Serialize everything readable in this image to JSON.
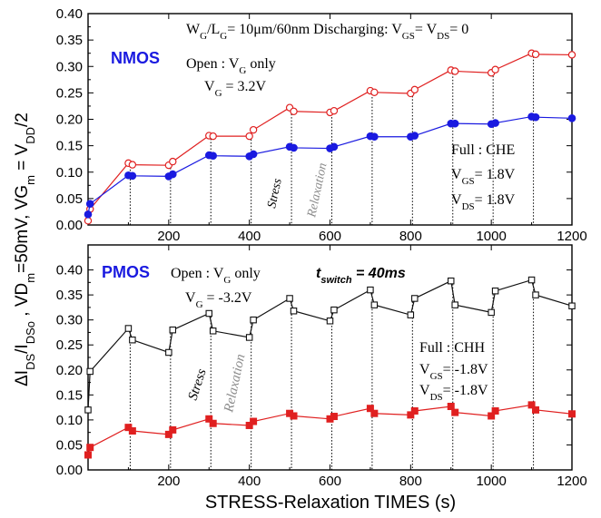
{
  "chart_data": [
    {
      "panel": "top",
      "type": "line",
      "label": "NMOS",
      "x_ticks": [
        "200",
        "400",
        "600",
        "800",
        "1000",
        "1200"
      ],
      "y_ticks": [
        "0.00",
        "0.05",
        "0.10",
        "0.15",
        "0.20",
        "0.25",
        "0.30",
        "0.35",
        "0.40"
      ],
      "xlim": [
        0,
        1200
      ],
      "ylim": [
        0,
        0.4
      ],
      "annotations": {
        "geometry": "W<sub>G</sub>/L<sub>G</sub>= 10μm/60nm Discharging: V<sub>GS</sub>= V<sub>DS</sub>= 0",
        "open_label": "Open : V<sub>G</sub> only",
        "open_vg": "V<sub>G</sub> = 3.2V",
        "full_label": "Full : CHE",
        "full_vgs": "V<sub>GS</sub>= 1.8V",
        "full_vds": "V<sub>DS</sub>= 1.8V",
        "stress": "Stress",
        "relaxation": "Relaxation"
      },
      "series": [
        {
          "color": "#e02020",
          "marker": "open-circle",
          "x": [
            0,
            5,
            100,
            110,
            200,
            210,
            300,
            310,
            400,
            410,
            500,
            510,
            600,
            610,
            700,
            710,
            800,
            810,
            900,
            910,
            1000,
            1010,
            1100,
            1110,
            1200
          ],
          "y": [
            0.008,
            0.03,
            0.117,
            0.114,
            0.113,
            0.12,
            0.169,
            0.168,
            0.168,
            0.18,
            0.222,
            0.215,
            0.213,
            0.216,
            0.254,
            0.251,
            0.249,
            0.256,
            0.293,
            0.291,
            0.288,
            0.294,
            0.325,
            0.323,
            0.322
          ]
        },
        {
          "color": "#1a1ae0",
          "marker": "filled-circle",
          "x": [
            0,
            5,
            100,
            110,
            200,
            210,
            300,
            310,
            400,
            410,
            500,
            510,
            600,
            610,
            700,
            710,
            800,
            810,
            900,
            910,
            1000,
            1010,
            1100,
            1110,
            1200
          ],
          "y": [
            0.02,
            0.04,
            0.094,
            0.093,
            0.092,
            0.096,
            0.132,
            0.131,
            0.13,
            0.134,
            0.148,
            0.146,
            0.145,
            0.148,
            0.168,
            0.167,
            0.167,
            0.169,
            0.192,
            0.192,
            0.191,
            0.193,
            0.205,
            0.204,
            0.202
          ]
        }
      ]
    },
    {
      "panel": "bottom",
      "type": "line",
      "label": "PMOS",
      "x_ticks": [
        "200",
        "400",
        "600",
        "800",
        "1000",
        "1200"
      ],
      "y_ticks": [
        "0.00",
        "0.05",
        "0.10",
        "0.15",
        "0.20",
        "0.25",
        "0.30",
        "0.35",
        "0.40"
      ],
      "xlim": [
        0,
        1200
      ],
      "ylim": [
        0,
        0.45
      ],
      "annotations": {
        "open_label": "Open : V<sub>G</sub> only",
        "open_vg": "V<sub>G</sub> = -3.2V",
        "tswitch": "<tspan font-style='italic'>t</tspan><tspan baseline-shift='sub' font-size='11' font-style='italic'>switch</tspan><tspan font-style='italic'> = 40ms</tspan>",
        "full_label": "Full : CHH",
        "full_vgs": "V<sub>GS</sub>= -1.8V",
        "full_vds": "V<sub>DS</sub>= -1.8V",
        "stress": "Stress",
        "relaxation": "Relaxation"
      },
      "series": [
        {
          "color": "#111111",
          "marker": "open-square",
          "x": [
            0,
            5,
            100,
            110,
            200,
            210,
            300,
            310,
            400,
            410,
            500,
            510,
            600,
            610,
            700,
            710,
            800,
            810,
            900,
            910,
            1000,
            1010,
            1100,
            1110,
            1200
          ],
          "y": [
            0.12,
            0.197,
            0.283,
            0.26,
            0.235,
            0.28,
            0.313,
            0.278,
            0.265,
            0.3,
            0.343,
            0.318,
            0.298,
            0.32,
            0.36,
            0.33,
            0.31,
            0.343,
            0.378,
            0.33,
            0.315,
            0.358,
            0.38,
            0.35,
            0.328
          ]
        },
        {
          "color": "#e02020",
          "marker": "filled-square",
          "x": [
            0,
            5,
            100,
            110,
            200,
            210,
            300,
            310,
            400,
            410,
            500,
            510,
            600,
            610,
            700,
            710,
            800,
            810,
            900,
            910,
            1000,
            1010,
            1100,
            1110,
            1200
          ],
          "y": [
            0.03,
            0.045,
            0.085,
            0.078,
            0.071,
            0.08,
            0.102,
            0.093,
            0.089,
            0.097,
            0.113,
            0.108,
            0.102,
            0.107,
            0.123,
            0.113,
            0.11,
            0.118,
            0.127,
            0.115,
            0.108,
            0.118,
            0.13,
            0.12,
            0.112
          ]
        }
      ]
    }
  ],
  "axis_title_x": "STRESS-Relaxation TIMES (s)",
  "axis_title_y": "ΔI<tspan baseline-shift='sub' font-size='13'>DS</tspan>/I<tspan baseline-shift='sub' font-size='13'>DSo</tspan> ,  VD<tspan baseline-shift='sub' font-size='13'>m</tspan>=50mV,  VG<tspan baseline-shift='sub' font-size='13'>m</tspan> = V<tspan baseline-shift='sub' font-size='13'>DD</tspan>/2"
}
